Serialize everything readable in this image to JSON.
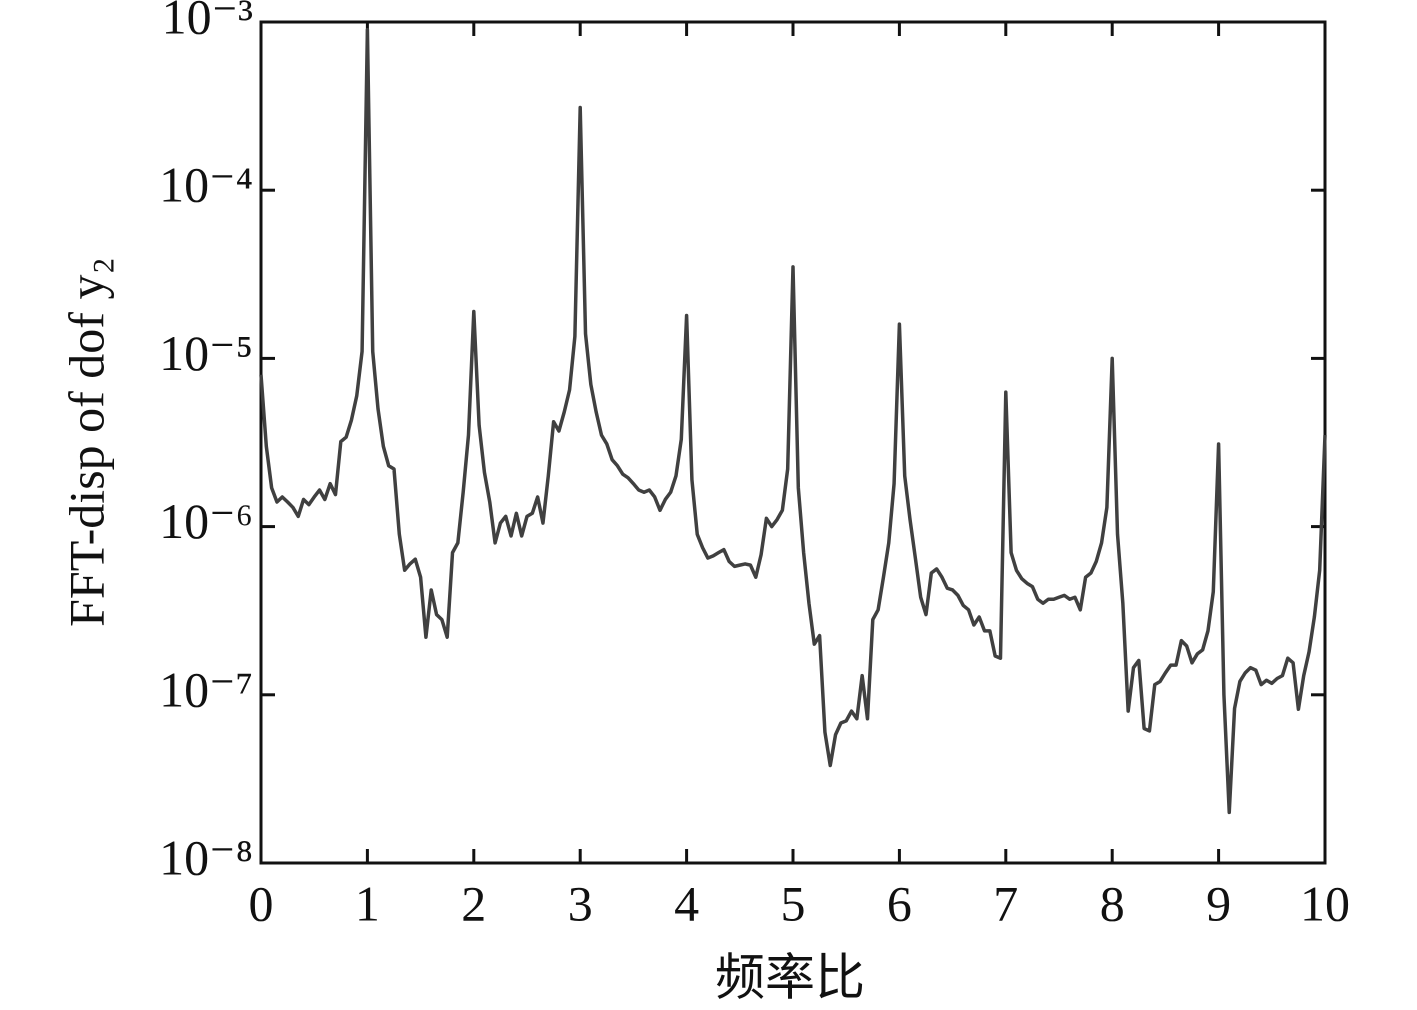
{
  "chart_data": {
    "type": "line",
    "xlabel": "频率比",
    "ylabel": "FFT-disp of dof y₂",
    "xlim": [
      0,
      10
    ],
    "xticks": [
      0,
      1,
      2,
      3,
      4,
      5,
      6,
      7,
      8,
      9,
      10
    ],
    "ylim": [
      1e-08,
      0.001
    ],
    "yscale": "log",
    "yticks": [
      {
        "value": 1e-08,
        "label": "10⁻⁸"
      },
      {
        "value": 1e-07,
        "label": "10⁻⁷"
      },
      {
        "value": 1e-06,
        "label": "10⁻⁶"
      },
      {
        "value": 1e-05,
        "label": "10⁻⁵"
      },
      {
        "value": 0.0001,
        "label": "10⁻⁴"
      },
      {
        "value": 0.001,
        "label": "10⁻³"
      }
    ],
    "grid": false,
    "x": [
      0,
      0.05,
      0.1,
      0.15,
      0.2,
      0.25,
      0.3,
      0.35,
      0.4,
      0.45,
      0.5,
      0.55,
      0.6,
      0.65,
      0.7,
      0.75,
      0.8,
      0.85,
      0.9,
      0.95,
      1,
      1.05,
      1.1,
      1.15,
      1.2,
      1.25,
      1.3,
      1.35,
      1.4,
      1.45,
      1.5,
      1.55,
      1.6,
      1.65,
      1.7,
      1.75,
      1.8,
      1.85,
      1.9,
      1.95,
      2,
      2.05,
      2.1,
      2.15,
      2.2,
      2.25,
      2.3,
      2.35,
      2.4,
      2.45,
      2.5,
      2.55,
      2.6,
      2.65,
      2.7,
      2.75,
      2.8,
      2.85,
      2.9,
      2.95,
      3,
      3.05,
      3.1,
      3.15,
      3.2,
      3.25,
      3.3,
      3.35,
      3.4,
      3.45,
      3.5,
      3.55,
      3.6,
      3.65,
      3.7,
      3.75,
      3.8,
      3.85,
      3.9,
      3.95,
      4,
      4.05,
      4.1,
      4.15,
      4.2,
      4.25,
      4.3,
      4.35,
      4.4,
      4.45,
      4.5,
      4.55,
      4.6,
      4.65,
      4.7,
      4.75,
      4.8,
      4.85,
      4.9,
      4.95,
      5,
      5.05,
      5.1,
      5.15,
      5.2,
      5.25,
      5.3,
      5.35,
      5.4,
      5.45,
      5.5,
      5.55,
      5.6,
      5.65,
      5.7,
      5.75,
      5.8,
      5.85,
      5.9,
      5.95,
      6,
      6.05,
      6.1,
      6.15,
      6.2,
      6.25,
      6.3,
      6.35,
      6.4,
      6.45,
      6.5,
      6.55,
      6.6,
      6.65,
      6.7,
      6.75,
      6.8,
      6.85,
      6.9,
      6.95,
      7,
      7.05,
      7.1,
      7.15,
      7.2,
      7.25,
      7.3,
      7.35,
      7.4,
      7.45,
      7.5,
      7.55,
      7.6,
      7.65,
      7.7,
      7.75,
      7.8,
      7.85,
      7.9,
      7.95,
      8,
      8.05,
      8.1,
      8.15,
      8.2,
      8.25,
      8.3,
      8.35,
      8.4,
      8.45,
      8.5,
      8.55,
      8.6,
      8.65,
      8.7,
      8.75,
      8.8,
      8.85,
      8.9,
      8.95,
      9,
      9.05,
      9.1,
      9.15,
      9.2,
      9.25,
      9.3,
      9.35,
      9.4,
      9.45,
      9.5,
      9.55,
      9.6,
      9.65,
      9.7,
      9.75,
      9.8,
      9.85,
      9.9,
      9.95,
      10
    ],
    "series": [
      {
        "name": "y2",
        "color": "#404040",
        "values": [
          8e-06,
          3e-06,
          1.7e-06,
          1.4e-06,
          1.5e-06,
          1.4e-06,
          1.3e-06,
          1.15e-06,
          1.45e-06,
          1.35e-06,
          1.5e-06,
          1.65e-06,
          1.45e-06,
          1.8e-06,
          1.55e-06,
          3.2e-06,
          3.4e-06,
          4.3e-06,
          6e-06,
          1.1e-05,
          0.0009,
          1.1e-05,
          5e-06,
          3e-06,
          2.3e-06,
          2.2e-06,
          9e-07,
          5.5e-07,
          6e-07,
          6.4e-07,
          5e-07,
          2.2e-07,
          4.2e-07,
          3e-07,
          2.8e-07,
          2.2e-07,
          7e-07,
          8e-07,
          1.6e-06,
          3.5e-06,
          1.9e-05,
          4e-06,
          2.1e-06,
          1.4e-06,
          8e-07,
          1.05e-06,
          1.15e-06,
          8.8e-07,
          1.2e-06,
          8.8e-07,
          1.15e-06,
          1.2e-06,
          1.5e-06,
          1.05e-06,
          2e-06,
          4.2e-06,
          3.7e-06,
          4.8e-06,
          6.5e-06,
          1.35e-05,
          0.00031,
          1.4e-05,
          7e-06,
          4.8e-06,
          3.5e-06,
          3.1e-06,
          2.5e-06,
          2.3e-06,
          2.05e-06,
          1.95e-06,
          1.8e-06,
          1.65e-06,
          1.6e-06,
          1.65e-06,
          1.5e-06,
          1.25e-06,
          1.45e-06,
          1.6e-06,
          2e-06,
          3.3e-06,
          1.8e-05,
          1.9e-06,
          9e-07,
          7.5e-07,
          6.5e-07,
          6.7e-07,
          7e-07,
          7.3e-07,
          6.2e-07,
          5.8e-07,
          5.9e-07,
          6e-07,
          5.9e-07,
          5e-07,
          6.8e-07,
          1.12e-06,
          1e-06,
          1.1e-06,
          1.25e-06,
          2.2e-06,
          3.5e-05,
          1.7e-06,
          7e-07,
          3.5e-07,
          2e-07,
          2.25e-07,
          6e-08,
          3.8e-08,
          5.8e-08,
          6.8e-08,
          7e-08,
          8e-08,
          7.2e-08,
          1.3e-07,
          7.2e-08,
          2.8e-07,
          3.2e-07,
          5e-07,
          8e-07,
          1.8e-06,
          1.6e-05,
          2e-06,
          1.1e-06,
          6.5e-07,
          3.8e-07,
          3e-07,
          5.3e-07,
          5.6e-07,
          5e-07,
          4.3e-07,
          4.2e-07,
          3.9e-07,
          3.4e-07,
          3.2e-07,
          2.6e-07,
          2.9e-07,
          2.4e-07,
          2.4e-07,
          1.7e-07,
          1.65e-07,
          6.3e-06,
          7e-07,
          5.5e-07,
          4.9e-07,
          4.6e-07,
          4.4e-07,
          3.7e-07,
          3.5e-07,
          3.7e-07,
          3.7e-07,
          3.8e-07,
          3.9e-07,
          3.7e-07,
          3.8e-07,
          3.2e-07,
          5e-07,
          5.3e-07,
          6.2e-07,
          8e-07,
          1.3e-06,
          1e-05,
          9e-07,
          3.5e-07,
          8e-08,
          1.45e-07,
          1.6e-07,
          6.3e-08,
          6.1e-08,
          1.15e-07,
          1.2e-07,
          1.35e-07,
          1.5e-07,
          1.5e-07,
          2.1e-07,
          1.95e-07,
          1.55e-07,
          1.75e-07,
          1.85e-07,
          2.4e-07,
          4.1e-07,
          3.1e-06,
          1e-07,
          2e-08,
          8.3e-08,
          1.2e-07,
          1.35e-07,
          1.45e-07,
          1.4e-07,
          1.15e-07,
          1.22e-07,
          1.17e-07,
          1.25e-07,
          1.3e-07,
          1.65e-07,
          1.55e-07,
          8.2e-08,
          1.3e-07,
          1.8e-07,
          2.9e-07,
          5.5e-07,
          3.5e-06
        ]
      }
    ]
  }
}
